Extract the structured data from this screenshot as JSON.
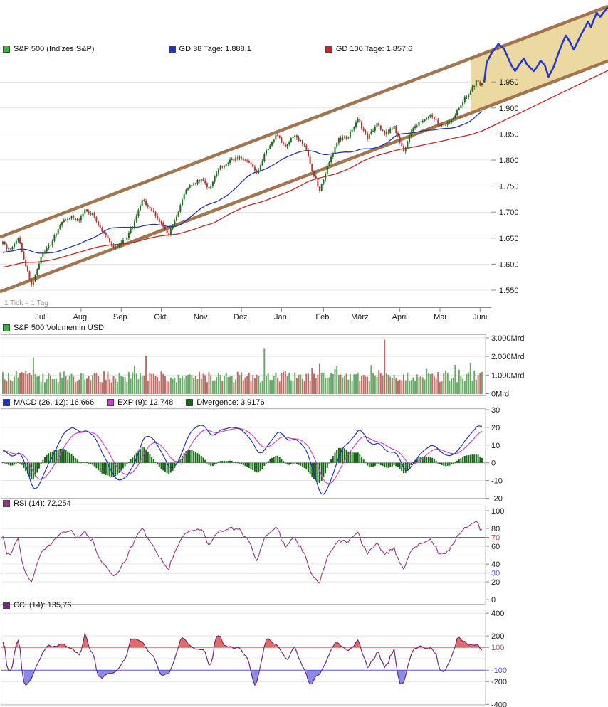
{
  "chart_data": {
    "type": "multi-panel-technical-chart",
    "instrument": "S&P 500",
    "tick_note": "1 Tick = 1 Tag",
    "x_axis": {
      "months": [
        {
          "label": "Juli",
          "day": 20
        },
        {
          "label": "Aug.",
          "day": 41
        },
        {
          "label": "Sep.",
          "day": 62
        },
        {
          "label": "Okt.",
          "day": 83
        },
        {
          "label": "Nov.",
          "day": 104
        },
        {
          "label": "Dez.",
          "day": 125
        },
        {
          "label": "Jan.",
          "day": 146
        },
        {
          "label": "Feb.",
          "day": 168
        },
        {
          "label": "März",
          "day": 187
        },
        {
          "label": "April",
          "day": 208
        },
        {
          "label": "Mai",
          "day": 229
        },
        {
          "label": "Juni",
          "day": 250
        }
      ]
    },
    "panels": {
      "price": {
        "type": "candlestick",
        "legend": [
          {
            "label": "S&P 500 (Indizes S&P)",
            "color": "#3db33d"
          },
          {
            "label": "GD 38 Tage: 1.888,1",
            "color": "#2233bb"
          },
          {
            "label": "GD 100 Tage: 1.857,6",
            "color": "#cc2222"
          }
        ],
        "ylim": [
          1517,
          2096
        ],
        "y_ticks": [
          {
            "v": 1950,
            "label": "1.950"
          },
          {
            "v": 1900,
            "label": "1.900"
          },
          {
            "v": 1850,
            "label": "1.850"
          },
          {
            "v": 1800,
            "label": "1.800"
          },
          {
            "v": 1750,
            "label": "1.750"
          },
          {
            "v": 1700,
            "label": "1.700"
          },
          {
            "v": 1650,
            "label": "1.650"
          },
          {
            "v": 1600,
            "label": "1.600"
          },
          {
            "v": 1550,
            "label": "1.550"
          }
        ],
        "close_anchors": [
          [
            0,
            1640
          ],
          [
            4,
            1626
          ],
          [
            8,
            1650
          ],
          [
            12,
            1598
          ],
          [
            15,
            1560
          ],
          [
            18,
            1590
          ],
          [
            20,
            1615
          ],
          [
            25,
            1640
          ],
          [
            30,
            1675
          ],
          [
            35,
            1690
          ],
          [
            40,
            1686
          ],
          [
            43,
            1707
          ],
          [
            48,
            1691
          ],
          [
            53,
            1658
          ],
          [
            58,
            1630
          ],
          [
            63,
            1642
          ],
          [
            68,
            1672
          ],
          [
            73,
            1725
          ],
          [
            78,
            1701
          ],
          [
            83,
            1680
          ],
          [
            87,
            1655
          ],
          [
            92,
            1703
          ],
          [
            96,
            1745
          ],
          [
            101,
            1756
          ],
          [
            104,
            1763
          ],
          [
            108,
            1747
          ],
          [
            113,
            1782
          ],
          [
            118,
            1795
          ],
          [
            123,
            1806
          ],
          [
            128,
            1800
          ],
          [
            133,
            1775
          ],
          [
            138,
            1818
          ],
          [
            143,
            1848
          ],
          [
            148,
            1827
          ],
          [
            153,
            1848
          ],
          [
            158,
            1828
          ],
          [
            162,
            1782
          ],
          [
            166,
            1742
          ],
          [
            171,
            1797
          ],
          [
            176,
            1839
          ],
          [
            181,
            1846
          ],
          [
            186,
            1878
          ],
          [
            191,
            1841
          ],
          [
            196,
            1872
          ],
          [
            200,
            1849
          ],
          [
            205,
            1865
          ],
          [
            210,
            1816
          ],
          [
            215,
            1862
          ],
          [
            220,
            1878
          ],
          [
            224,
            1883
          ],
          [
            229,
            1868
          ],
          [
            234,
            1872
          ],
          [
            239,
            1900
          ],
          [
            243,
            1924
          ],
          [
            248,
            1950
          ],
          [
            251,
            1944
          ]
        ],
        "ma_fast_window": 38,
        "ma_slow_window": 100,
        "ma_slow_right_edge_price": 1972,
        "channel": {
          "lower_price_at_day0": 1549,
          "slope_points_per_day": 1.392,
          "width_points": 105,
          "fill_from_day": 245
        },
        "projection": [
          [
            0,
            1949
          ],
          [
            0.02,
            1987
          ],
          [
            0.06,
            2005
          ],
          [
            0.115,
            2023
          ],
          [
            0.16,
            2014
          ],
          [
            0.19,
            1998
          ],
          [
            0.22,
            1982
          ],
          [
            0.25,
            1971
          ],
          [
            0.28,
            1982
          ],
          [
            0.32,
            1995
          ],
          [
            0.345,
            1984
          ],
          [
            0.4,
            1971
          ],
          [
            0.425,
            1978
          ],
          [
            0.455,
            1991
          ],
          [
            0.49,
            1982
          ],
          [
            0.52,
            1960
          ],
          [
            0.56,
            1978
          ],
          [
            0.6,
            2005
          ],
          [
            0.632,
            2025
          ],
          [
            0.66,
            2039
          ],
          [
            0.69,
            2028
          ],
          [
            0.724,
            2012
          ],
          [
            0.75,
            2025
          ],
          [
            0.785,
            2042
          ],
          [
            0.816,
            2055
          ],
          [
            0.839,
            2066
          ],
          [
            0.862,
            2055
          ],
          [
            0.885,
            2069
          ],
          [
            0.91,
            2083
          ],
          [
            0.937,
            2075
          ],
          [
            1.0,
            2094
          ]
        ]
      },
      "volume": {
        "type": "bar",
        "legend": [
          {
            "label": "S&P 500 Volumen in USD",
            "color": "#3db33d"
          }
        ],
        "unit": "Mrd USD",
        "ylim": [
          0,
          3.3
        ],
        "y_ticks": [
          {
            "v": 3,
            "label": "3.000Mrd"
          },
          {
            "v": 2,
            "label": "2.000Mrd"
          },
          {
            "v": 1,
            "label": "1.000Mrd"
          },
          {
            "v": 0,
            "label": "0Mrd"
          }
        ],
        "base_range": [
          0.6,
          1.2
        ],
        "spikes": [
          {
            "day": 16,
            "value": 1.95,
            "dir": "up"
          },
          {
            "day": 75,
            "value": 2.05,
            "dir": "down"
          },
          {
            "day": 137,
            "value": 2.45,
            "dir": "up"
          },
          {
            "day": 166,
            "value": 1.6,
            "dir": "down"
          },
          {
            "day": 200,
            "value": 2.9,
            "dir": "down"
          },
          {
            "day": 245,
            "value": 1.65,
            "dir": "up"
          }
        ]
      },
      "macd": {
        "type": "line+histogram",
        "legend": [
          {
            "label": "MACD (26, 12): 16,666",
            "color": "#2233bb"
          },
          {
            "label": "EXP (9): 12,748",
            "color": "#cc44cc"
          },
          {
            "label": "Divergence: 3,9176",
            "color": "#156915"
          }
        ],
        "params": {
          "fast": 12,
          "slow": 26,
          "signal": 9
        },
        "ylim": [
          -22,
          30
        ],
        "y_ticks": [
          {
            "v": 30,
            "label": "30"
          },
          {
            "v": 20,
            "label": "20"
          },
          {
            "v": 10,
            "label": "10"
          },
          {
            "v": 0,
            "label": "0"
          },
          {
            "v": -10,
            "label": "-10"
          },
          {
            "v": -20,
            "label": "-20"
          }
        ]
      },
      "rsi": {
        "type": "line",
        "legend": [
          {
            "label": "RSI (14): 72,254",
            "color": "#993388"
          }
        ],
        "period": 14,
        "ylim": [
          0,
          100
        ],
        "y_ticks": [
          {
            "v": 100,
            "label": "100"
          },
          {
            "v": 80,
            "label": "80"
          },
          {
            "v": 70,
            "label": "70",
            "color": "#dd4444"
          },
          {
            "v": 60,
            "label": "60"
          },
          {
            "v": 40,
            "label": "40"
          },
          {
            "v": 30,
            "label": "30",
            "color": "#5555dd"
          },
          {
            "v": 20,
            "label": "20"
          },
          {
            "v": 0,
            "label": "0"
          }
        ],
        "levels": [
          {
            "v": 70,
            "color": "#dd4444"
          },
          {
            "v": 50,
            "color": "#999999"
          },
          {
            "v": 30,
            "color": "#5555dd"
          }
        ]
      },
      "cci": {
        "type": "line",
        "legend": [
          {
            "label": "CCI (14): 135,76",
            "color": "#6b2d7a"
          }
        ],
        "period": 14,
        "ylim": [
          -450,
          450
        ],
        "y_ticks": [
          {
            "v": 400,
            "label": "400"
          },
          {
            "v": 200,
            "label": "200"
          },
          {
            "v": 100,
            "label": "100",
            "color": "#dd4444"
          },
          {
            "v": -100,
            "label": "-100",
            "color": "#5555dd"
          },
          {
            "v": -200,
            "label": "-200"
          },
          {
            "v": -400,
            "label": "-400"
          }
        ],
        "levels": [
          {
            "v": 100,
            "color": "#dd4444"
          },
          {
            "v": 0,
            "color": "#c0c0c0"
          },
          {
            "v": -100,
            "color": "#5555dd"
          }
        ]
      }
    }
  },
  "colors": {
    "candle_up": "#1a6e1a",
    "candle_down": "#b23333",
    "ma_fast": "#2233bb",
    "ma_slow": "#cc2222",
    "channel_line": "#a3754e",
    "channel_fill": "#ecd9a2",
    "projection": "#2438cc",
    "volume_up": "#67ab67",
    "volume_down": "#bc6c63",
    "macd_line": "#2233bb",
    "macd_signal": "#cc44cc",
    "macd_hist": "#156915",
    "rsi_line": "#993388",
    "cci_line": "#6b2d7a",
    "cci_fill_high": "#e36a6a",
    "cci_fill_low": "#8a8ae8",
    "grid": "#e4e4e4",
    "axis": "#888888",
    "text": "#222222"
  }
}
